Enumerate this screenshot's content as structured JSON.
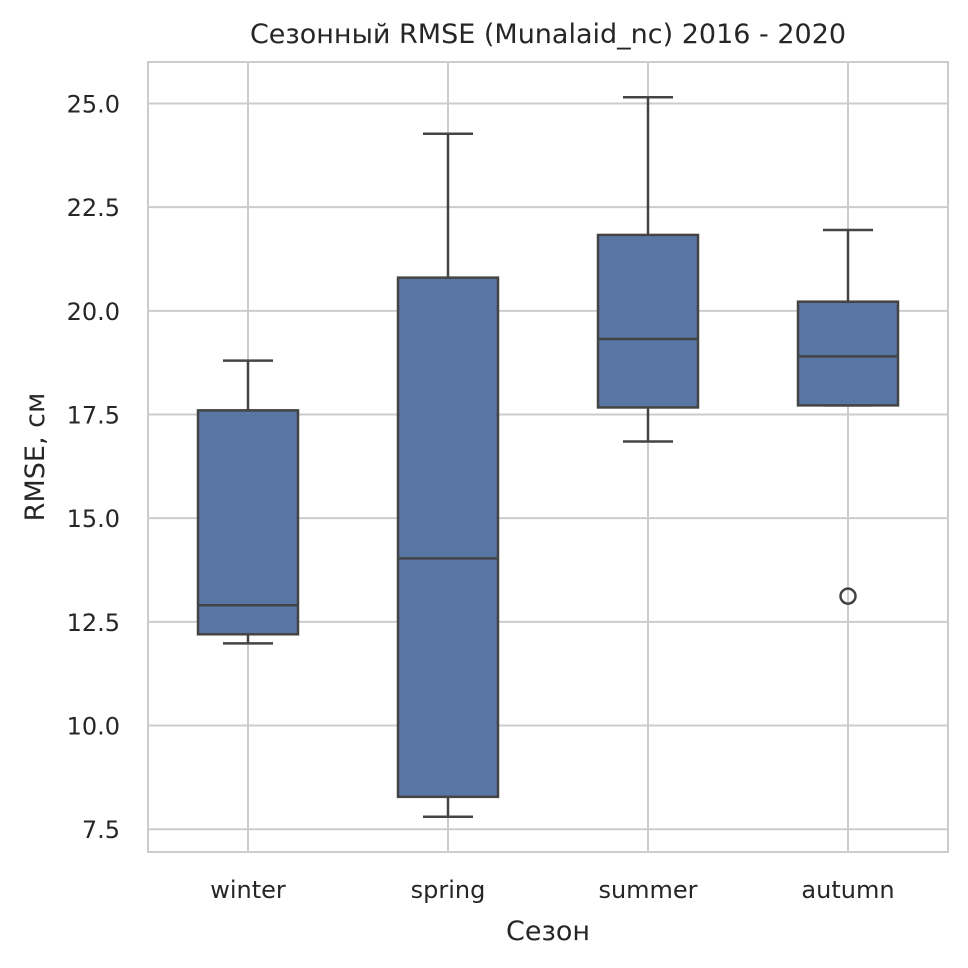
{
  "chart_data": {
    "type": "box",
    "title": "Сезонный RMSE (Munalaid_nc) 2016 - 2020",
    "xlabel": "Сезон",
    "ylabel": "RMSE, см",
    "ylim": [
      6.95,
      26.0
    ],
    "yticks": [
      "7.5",
      "10.0",
      "12.5",
      "15.0",
      "17.5",
      "20.0",
      "22.5",
      "25.0"
    ],
    "grid": true,
    "box_color": "#5875a4",
    "line_color": "#444444",
    "categories": [
      "winter",
      "spring",
      "summer",
      "autumn"
    ],
    "boxes": [
      {
        "category": "winter",
        "whisker_low": 11.98,
        "q1": 12.2,
        "median": 12.9,
        "q3": 17.6,
        "whisker_high": 18.8,
        "fliers": []
      },
      {
        "category": "spring",
        "whisker_low": 7.8,
        "q1": 8.28,
        "median": 14.03,
        "q3": 20.8,
        "whisker_high": 24.27,
        "fliers": []
      },
      {
        "category": "summer",
        "whisker_low": 16.85,
        "q1": 17.67,
        "median": 19.32,
        "q3": 21.83,
        "whisker_high": 25.15,
        "fliers": []
      },
      {
        "category": "autumn",
        "whisker_low": 17.72,
        "q1": 17.72,
        "median": 18.9,
        "q3": 20.22,
        "whisker_high": 21.95,
        "fliers": [
          13.12
        ]
      }
    ]
  }
}
